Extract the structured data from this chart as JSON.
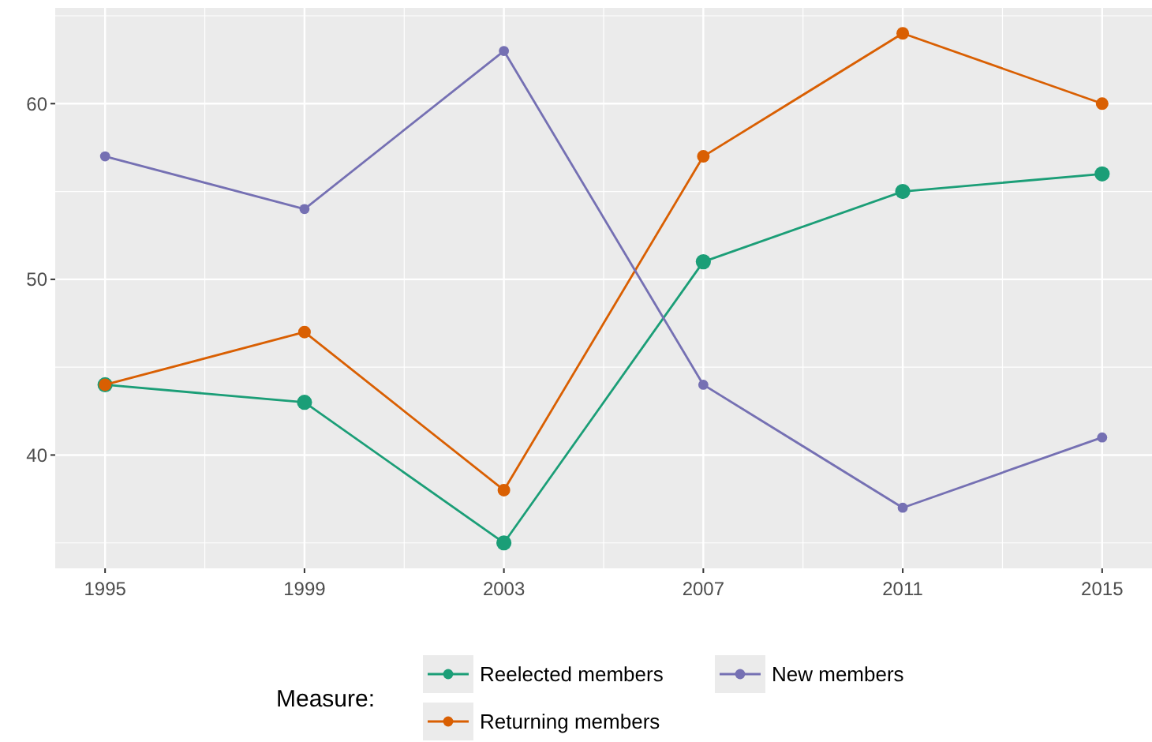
{
  "chart_data": {
    "type": "line",
    "x": [
      1995,
      1999,
      2003,
      2007,
      2011,
      2015
    ],
    "xlim": [
      1994,
      2016
    ],
    "xticks": [
      1995,
      1999,
      2003,
      2007,
      2011,
      2015
    ],
    "ylim": [
      33.55,
      65.45
    ],
    "yticks": [
      40,
      50,
      60
    ],
    "grid": true,
    "marker": "circle",
    "line_style": "solid",
    "legend": "bottom",
    "legend_title": "Measure:",
    "series": [
      {
        "name": "Reelected members",
        "color": "#1b9e77",
        "values": [
          44,
          43,
          35,
          51,
          55,
          56
        ]
      },
      {
        "name": "Returning members",
        "color": "#d95f02",
        "values": [
          44,
          47,
          38,
          57,
          64,
          60
        ]
      },
      {
        "name": "New members",
        "color": "#7570b3",
        "values": [
          57,
          54,
          63,
          44,
          37,
          41
        ]
      }
    ]
  }
}
